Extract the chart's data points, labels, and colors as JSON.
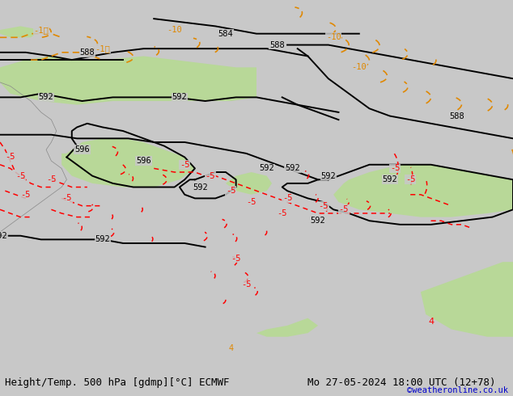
{
  "title_left": "Height/Temp. 500 hPa [gdmp][°C] ECMWF",
  "title_right": "Mo 27-05-2024 18:00 UTC (12+78)",
  "credit": "©weatheronline.co.uk",
  "bg_color": "#c8c8c8",
  "land_color": "#c8c8c8",
  "sea_color": "#d8d8d8",
  "green_color": "#b8d898",
  "fig_width": 6.34,
  "fig_height": 4.9,
  "dpi": 100,
  "bottom_bar_height": 0.055,
  "bottom_bar_color": "#e0e0e0",
  "title_fontsize": 9.0,
  "credit_fontsize": 7.5,
  "credit_color": "#0000cc",
  "title_color": "#000000"
}
